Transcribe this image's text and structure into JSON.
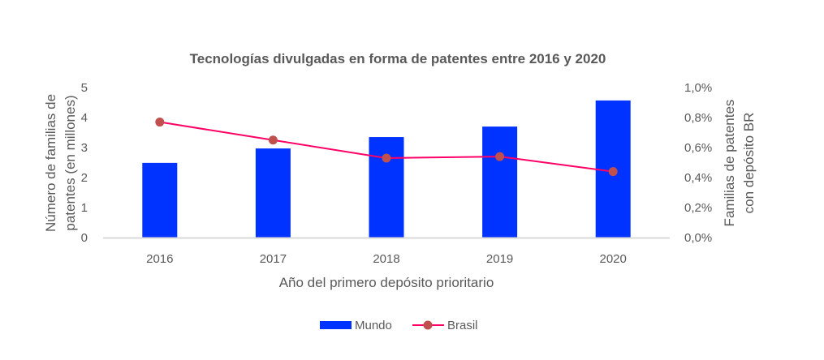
{
  "chart_data": {
    "type": "bar",
    "title": "Tecnologías divulgadas en forma de patentes entre 2016 y 2020",
    "categories": [
      "2016",
      "2017",
      "2018",
      "2019",
      "2020"
    ],
    "xlabel": "Año del primero depósito prioritario",
    "ylabel_lines": [
      "Número de familias de",
      "patentes  (en millones)"
    ],
    "y2label_lines": [
      "Familias de patentes",
      "con depósito BR"
    ],
    "ylim": [
      0,
      5
    ],
    "y_ticks": [
      "0",
      "1",
      "2",
      "3",
      "4",
      "5"
    ],
    "y2lim": [
      0,
      1.0
    ],
    "y2_ticks": [
      "0,0%",
      "0,2%",
      "0,4%",
      "0,6%",
      "0,8%",
      "1,0%"
    ],
    "grid": false,
    "legend_position": "bottom",
    "series": [
      {
        "name": "Mundo",
        "type": "bar",
        "axis": "left",
        "color": "#0033FF",
        "values": [
          2.49,
          2.97,
          3.35,
          3.7,
          4.57
        ]
      },
      {
        "name": "Brasil",
        "type": "line",
        "axis": "right",
        "line_color": "#FF0066",
        "marker_color": "#C0504D",
        "values": [
          0.77,
          0.65,
          0.53,
          0.54,
          0.44
        ]
      }
    ]
  }
}
